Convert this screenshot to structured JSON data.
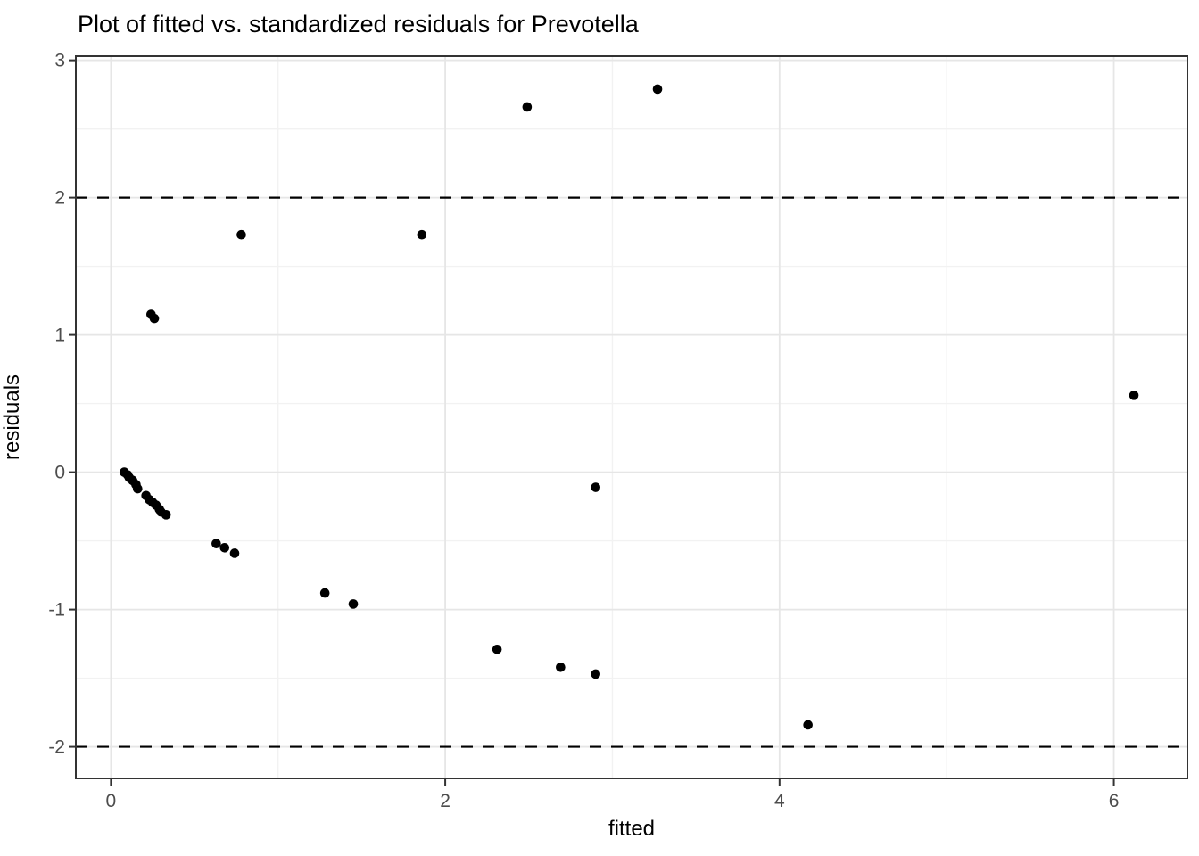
{
  "chart_data": {
    "type": "scatter",
    "title": "Plot of fitted vs. standardized residuals for Prevotella",
    "xlabel": "fitted",
    "ylabel": "residuals",
    "xlim": [
      -0.21,
      6.44
    ],
    "ylim": [
      -2.23,
      3.03
    ],
    "x_ticks": [
      0,
      2,
      4,
      6
    ],
    "y_ticks": [
      -2,
      -1,
      0,
      1,
      2,
      3
    ],
    "x_minor": [
      1,
      3,
      5
    ],
    "y_minor": [
      -1.5,
      -0.5,
      0.5,
      1.5,
      2.5
    ],
    "grid": true,
    "legend": "none",
    "reference_lines": {
      "y_values": [
        2,
        -2
      ],
      "style": "dashed",
      "color": "#000000"
    },
    "point_color": "#000000",
    "points": [
      [
        0.08,
        0.0
      ],
      [
        0.1,
        -0.02
      ],
      [
        0.11,
        -0.04
      ],
      [
        0.13,
        -0.06
      ],
      [
        0.15,
        -0.09
      ],
      [
        0.16,
        -0.12
      ],
      [
        0.21,
        -0.17
      ],
      [
        0.23,
        -0.2
      ],
      [
        0.25,
        -0.22
      ],
      [
        0.27,
        -0.24
      ],
      [
        0.29,
        -0.27
      ],
      [
        0.3,
        -0.29
      ],
      [
        0.33,
        -0.31
      ],
      [
        0.24,
        1.15
      ],
      [
        0.26,
        1.12
      ],
      [
        0.63,
        -0.52
      ],
      [
        0.68,
        -0.55
      ],
      [
        0.74,
        -0.59
      ],
      [
        0.78,
        1.73
      ],
      [
        1.28,
        -0.88
      ],
      [
        1.45,
        -0.96
      ],
      [
        1.86,
        1.73
      ],
      [
        2.31,
        -1.29
      ],
      [
        2.49,
        2.66
      ],
      [
        2.69,
        -1.42
      ],
      [
        2.9,
        -1.47
      ],
      [
        2.9,
        -0.11
      ],
      [
        3.27,
        2.79
      ],
      [
        4.17,
        -1.84
      ],
      [
        6.12,
        0.56
      ]
    ],
    "colors": {
      "background": "#FFFFFF",
      "panel_border": "#333333",
      "tick_mark": "#333333",
      "tick_label": "#4D4D4D",
      "grid_major": "#E6E6E6",
      "grid_minor": "#F2F2F2",
      "point": "#000000",
      "reference_line": "#000000"
    }
  }
}
